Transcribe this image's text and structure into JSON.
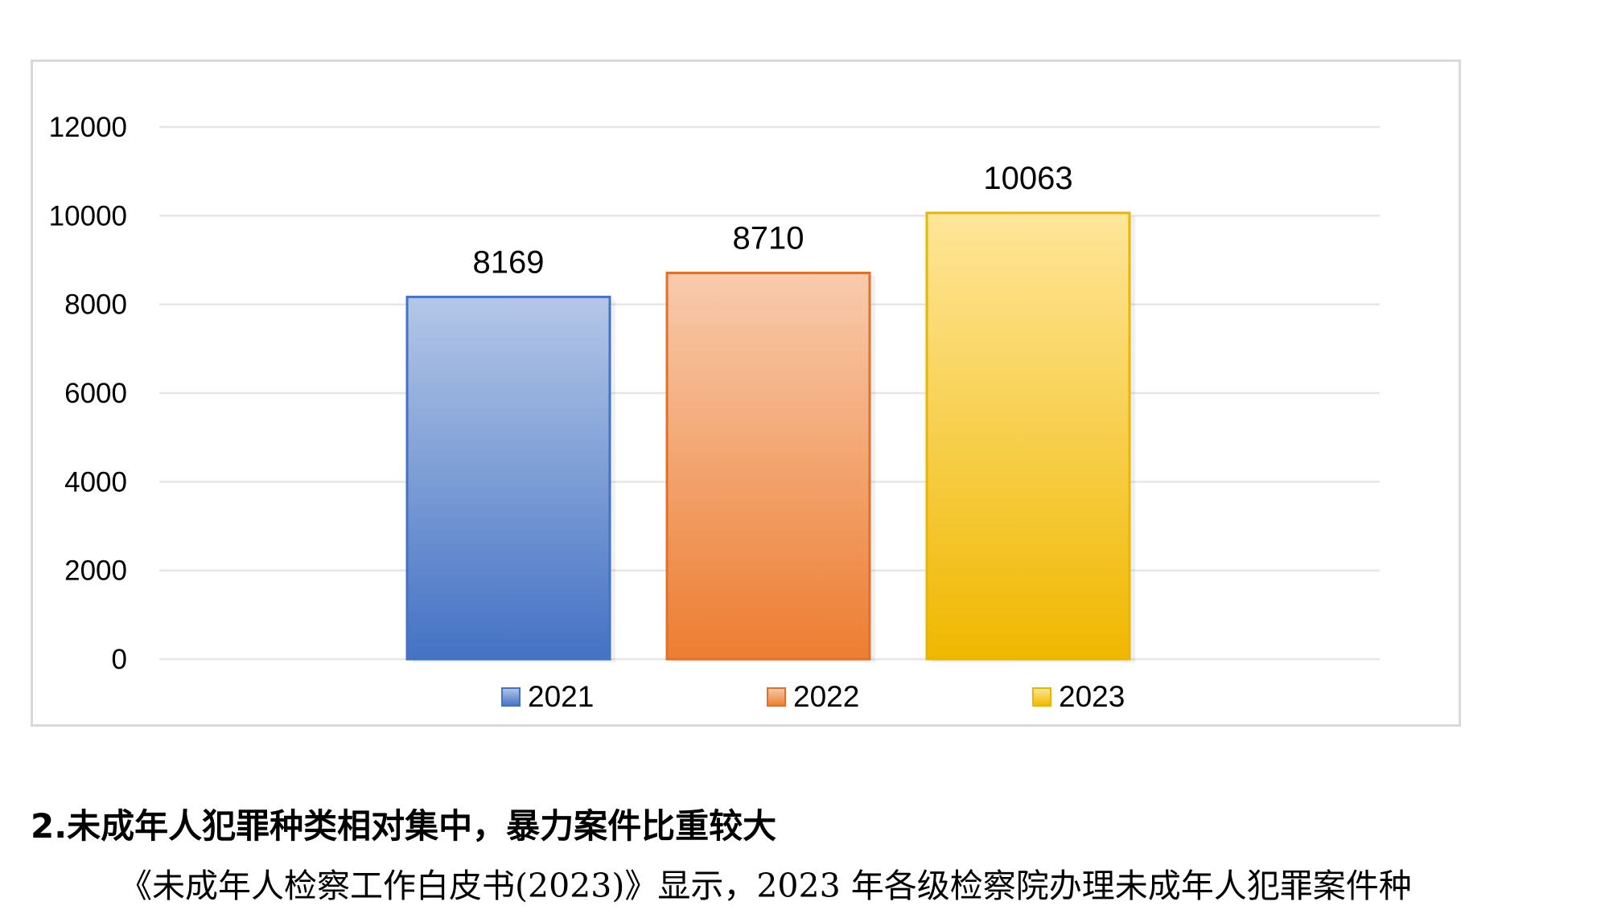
{
  "chart_data": {
    "type": "bar",
    "title": "",
    "xlabel": "",
    "ylabel": "",
    "categories": [
      "2021",
      "2022",
      "2023"
    ],
    "values": [
      8169,
      8710,
      10063
    ],
    "data_labels": [
      "8169",
      "8710",
      "10063"
    ],
    "ylim": [
      0,
      12000
    ],
    "yticks": [
      0,
      2000,
      4000,
      6000,
      8000,
      10000,
      12000
    ],
    "ytick_labels": [
      "0",
      "2000",
      "4000",
      "6000",
      "8000",
      "10000",
      "12000"
    ],
    "grid": true,
    "legend_position": "bottom",
    "legend": [
      "2021",
      "2022",
      "2023"
    ],
    "colors": [
      {
        "top": "#b4c7e7",
        "bottom": "#4472c4",
        "border": "#4472c4"
      },
      {
        "top": "#f8cbad",
        "bottom": "#ed7d31",
        "border": "#e0702a"
      },
      {
        "top": "#ffe699",
        "bottom": "#f0b800",
        "border": "#e8b500"
      }
    ]
  },
  "text": {
    "heading": "2.未成年人犯罪种类相对集中，暴力案件比重较大",
    "paragraph": "《未成年人检察工作白皮书(2023)》显示，2023 年各级检察院办理未成年人犯罪案件种"
  }
}
